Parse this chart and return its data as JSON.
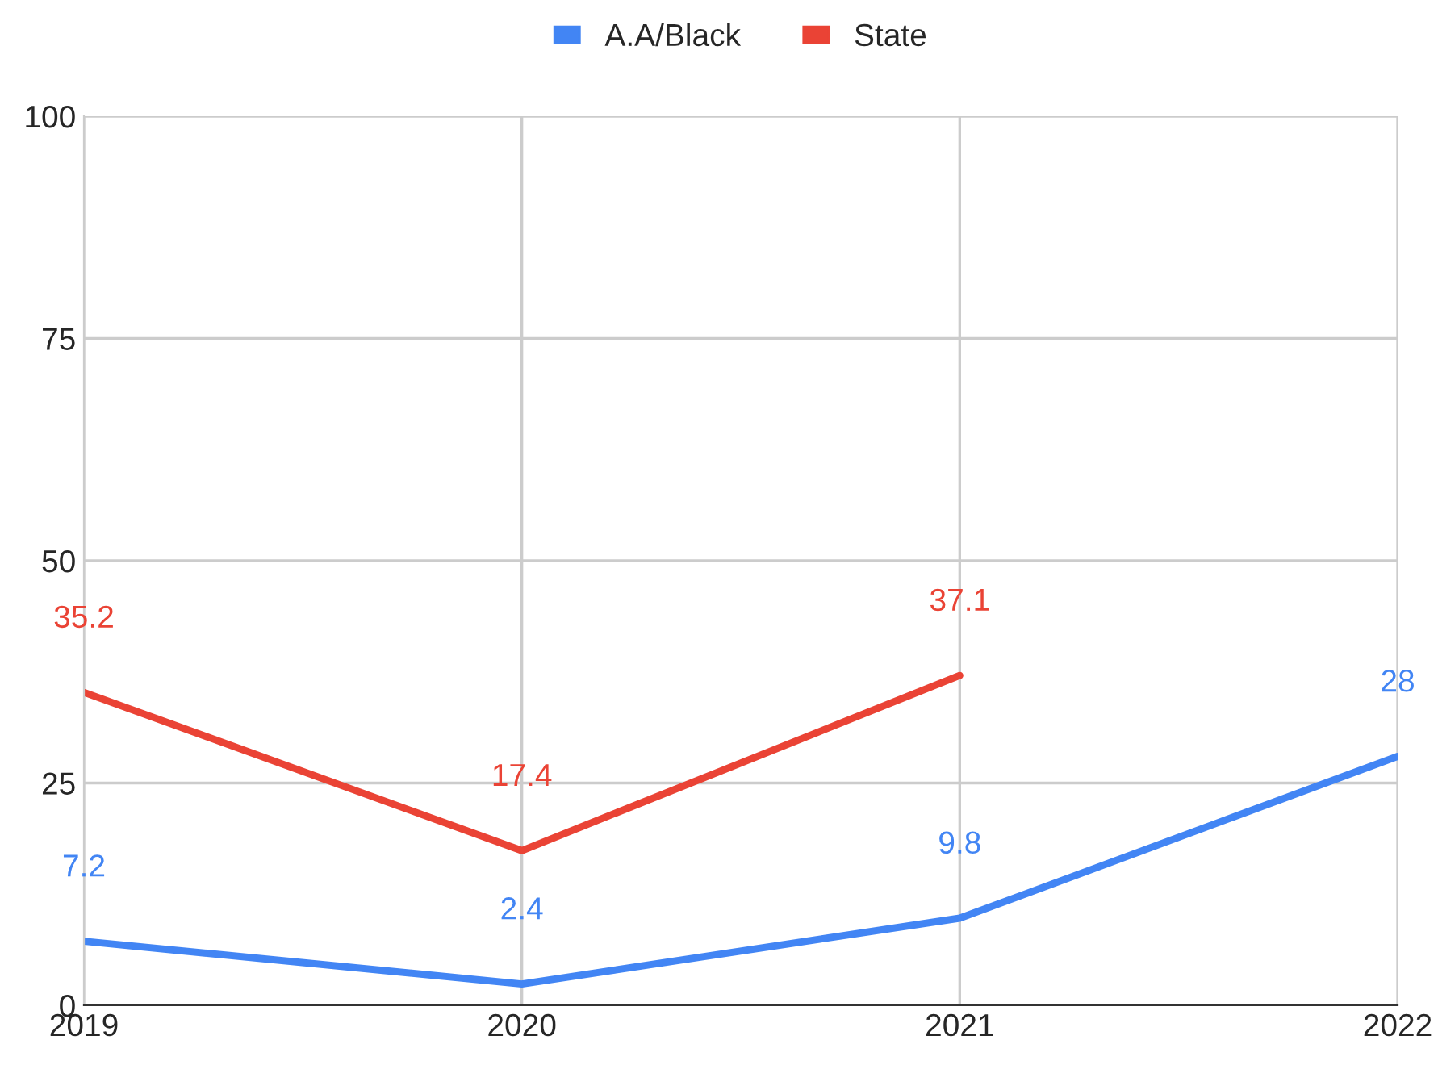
{
  "chart_data": {
    "type": "line",
    "categories": [
      "2019",
      "2020",
      "2021",
      "2022"
    ],
    "series": [
      {
        "name": "A.A/Black",
        "color": "#4285f4",
        "values": [
          7.2,
          2.4,
          9.8,
          28
        ]
      },
      {
        "name": "State",
        "color": "#ea4335",
        "values": [
          35.2,
          17.4,
          37.1,
          null
        ]
      }
    ],
    "ylim": [
      0,
      100
    ],
    "yticks": [
      0,
      25,
      50,
      75,
      100
    ],
    "grid": true,
    "legend": "top",
    "data_labels": true,
    "marker": "none",
    "line_style": "solid"
  }
}
